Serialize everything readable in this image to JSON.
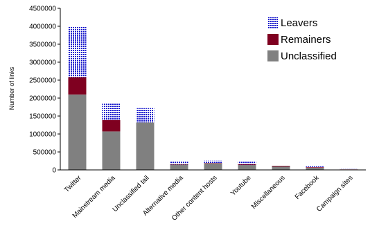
{
  "chart_data": {
    "type": "bar",
    "stacked": true,
    "categories": [
      "Twitter",
      "Mainstream media",
      "Unclassified tail",
      "Alternative media",
      "Other content hosts",
      "Youtube",
      "Miscellaneous",
      "Facebook",
      "Campaign sites"
    ],
    "series": [
      {
        "name": "Unclassified",
        "color": "#808080",
        "pattern": "solid",
        "values": [
          2100000,
          1070000,
          1320000,
          145000,
          180000,
          135000,
          95000,
          60000,
          10000
        ]
      },
      {
        "name": "Remainers",
        "color": "#7f0020",
        "pattern": "solid",
        "values": [
          480000,
          320000,
          0,
          15000,
          10000,
          25000,
          20000,
          15000,
          5000
        ]
      },
      {
        "name": "Leavers",
        "color": "#1a1acc",
        "pattern": "dotted-grid",
        "values": [
          1420000,
          460000,
          400000,
          85000,
          65000,
          75000,
          15000,
          25000,
          10000
        ]
      }
    ],
    "ylabel": "Number of links",
    "xlabel": "",
    "ylim": [
      0,
      4500000
    ],
    "yticks": [
      0,
      500000,
      1000000,
      1500000,
      2000000,
      2500000,
      3000000,
      3500000,
      4000000,
      4500000
    ],
    "grid": false,
    "legend_position": "top-right",
    "legend_order": [
      "Leavers",
      "Remainers",
      "Unclassified"
    ]
  }
}
